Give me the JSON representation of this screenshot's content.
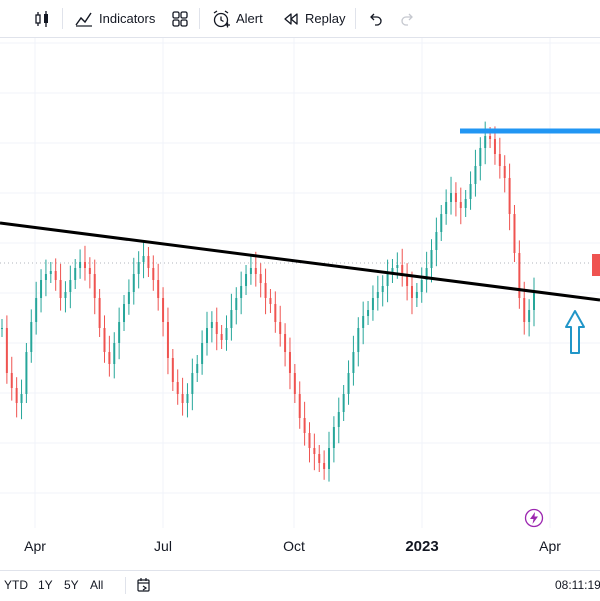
{
  "toolbar": {
    "indicators_label": "Indicators",
    "alert_label": "Alert",
    "replay_label": "Replay"
  },
  "xaxis": {
    "labels": [
      "Apr",
      "Jul",
      "Oct",
      "2023",
      "Apr"
    ]
  },
  "bottombar": {
    "ranges": [
      "YTD",
      "1Y",
      "5Y",
      "All"
    ],
    "clock": "08:11:19"
  },
  "colors": {
    "up": "#26a69a",
    "down": "#ef5350",
    "trendline": "#000000",
    "resistance": "#2196f3",
    "arrow": "#2196c8",
    "marker": "#ef5350",
    "lightning": "#9c27b0"
  },
  "icons": [
    "candles-icon",
    "indicators-icon",
    "layouts-icon",
    "alert-icon",
    "replay-icon",
    "undo-icon",
    "redo-icon",
    "calendar-range-icon",
    "lightning-icon",
    "up-arrow-icon"
  ],
  "chart_data": {
    "type": "candlestick",
    "x_ticks": [
      "Apr",
      "Jul",
      "Oct",
      "2023",
      "Apr"
    ],
    "annotations": [
      "descending trendline",
      "horizontal resistance line",
      "up arrow"
    ],
    "series": [
      {
        "values": [
          0.6,
          0.45,
          0.4,
          0.35,
          0.38,
          0.52,
          0.62,
          0.7,
          0.76,
          0.78,
          0.79,
          0.76,
          0.7,
          0.72,
          0.76,
          0.8,
          0.82,
          0.8,
          0.78,
          0.7,
          0.6,
          0.52,
          0.48,
          0.55,
          0.62,
          0.68,
          0.72,
          0.78,
          0.82,
          0.84,
          0.8,
          0.76,
          0.7,
          0.62,
          0.5,
          0.42,
          0.38,
          0.35,
          0.38,
          0.45,
          0.48,
          0.55,
          0.6,
          0.62,
          0.58,
          0.56,
          0.6,
          0.66,
          0.7,
          0.74,
          0.78,
          0.8,
          0.78,
          0.75,
          0.7,
          0.68,
          0.62,
          0.58,
          0.52,
          0.45,
          0.38,
          0.3,
          0.25,
          0.2,
          0.18,
          0.15,
          0.13,
          0.2,
          0.27,
          0.32,
          0.38,
          0.45,
          0.52,
          0.6,
          0.64,
          0.66,
          0.7,
          0.72,
          0.74,
          0.78,
          0.8,
          0.81,
          0.78,
          0.74,
          0.7,
          0.72,
          0.76,
          0.8,
          0.86,
          0.92,
          0.98,
          1.02,
          1.05,
          1.02,
          1.0,
          1.03,
          1.08,
          1.14,
          1.2,
          1.24,
          1.23,
          1.18,
          1.14,
          1.1,
          0.98,
          0.85,
          0.7,
          0.62,
          0.66,
          0.72
        ]
      }
    ]
  }
}
